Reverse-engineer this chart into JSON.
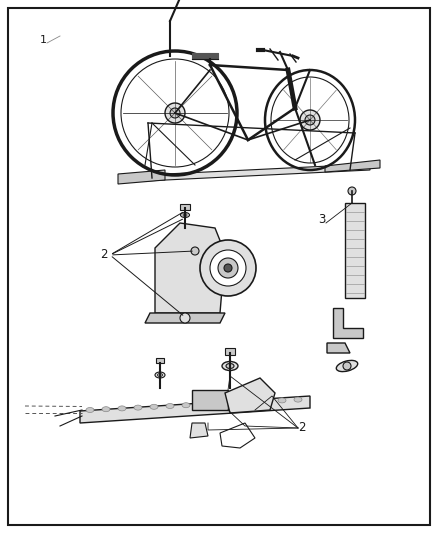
{
  "bg_color": "#ffffff",
  "border_color": "#000000",
  "text_color": "#000000",
  "label_1": "1",
  "label_2": "2",
  "label_3": "3",
  "fig_width": 4.38,
  "fig_height": 5.33,
  "dpi": 100,
  "line_color": "#1a1a1a",
  "light_fill": "#e0e0e0",
  "mid_fill": "#c8c8c8",
  "dark_fill": "#555555"
}
